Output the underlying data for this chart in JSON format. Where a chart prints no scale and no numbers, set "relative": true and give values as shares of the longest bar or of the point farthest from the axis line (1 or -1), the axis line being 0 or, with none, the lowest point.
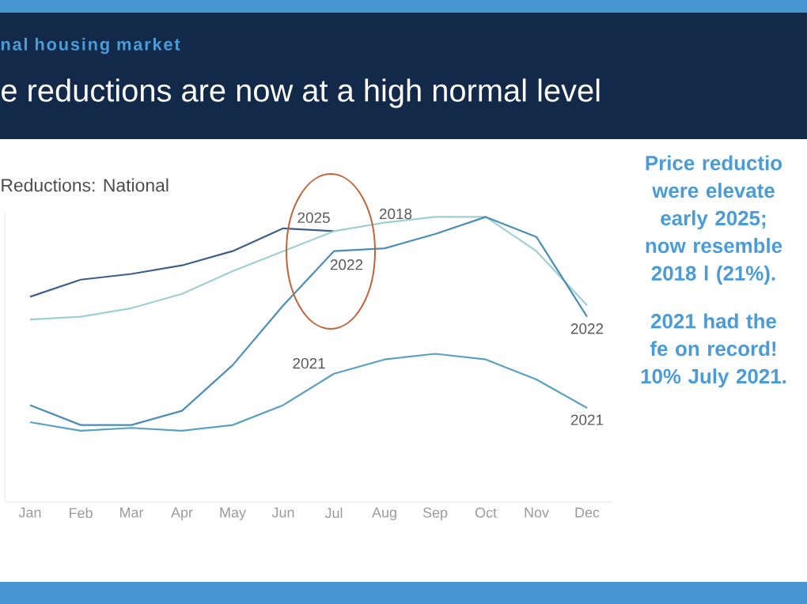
{
  "chart_data": {
    "type": "line",
    "title": "e reductions are now at a high normal level",
    "subtitle": "nal housing market",
    "relative": true,
    "marker": "none",
    "line_style": "solid",
    "categories": [
      "Jan",
      "Feb",
      "Mar",
      "Apr",
      "May",
      "Jun",
      "Jul",
      "Aug",
      "Sep",
      "Oct",
      "Nov",
      "Dec"
    ],
    "series": [
      {
        "name": "2025",
        "color": "#3d5f8a",
        "values": [
          0.72,
          0.78,
          0.8,
          0.83,
          0.88,
          0.96,
          0.95,
          null,
          null,
          null,
          null,
          null
        ]
      },
      {
        "name": "2018",
        "color": "#9fcfd4",
        "values": [
          0.64,
          0.65,
          0.68,
          0.73,
          0.81,
          0.88,
          0.95,
          0.98,
          1,
          1,
          0.88,
          0.69
        ]
      },
      {
        "name": "2022",
        "color": "#4a8db5",
        "values": [
          0.34,
          0.27,
          0.27,
          0.32,
          0.48,
          0.69,
          0.88,
          0.89,
          0.94,
          1,
          0.93,
          0.65
        ]
      },
      {
        "name": "2021",
        "color": "#5aa0c0",
        "values": [
          0.28,
          0.25,
          0.26,
          0.25,
          0.27,
          0.34,
          0.45,
          0.5,
          0.52,
          0.5,
          0.43,
          0.33
        ]
      }
    ],
    "annotations": [
      "Reductions: National",
      "Price reductio were elevate early 2025; now resemble 2018 l (21%).",
      "2021 had the fe on record! 10% July 2021."
    ]
  }
}
